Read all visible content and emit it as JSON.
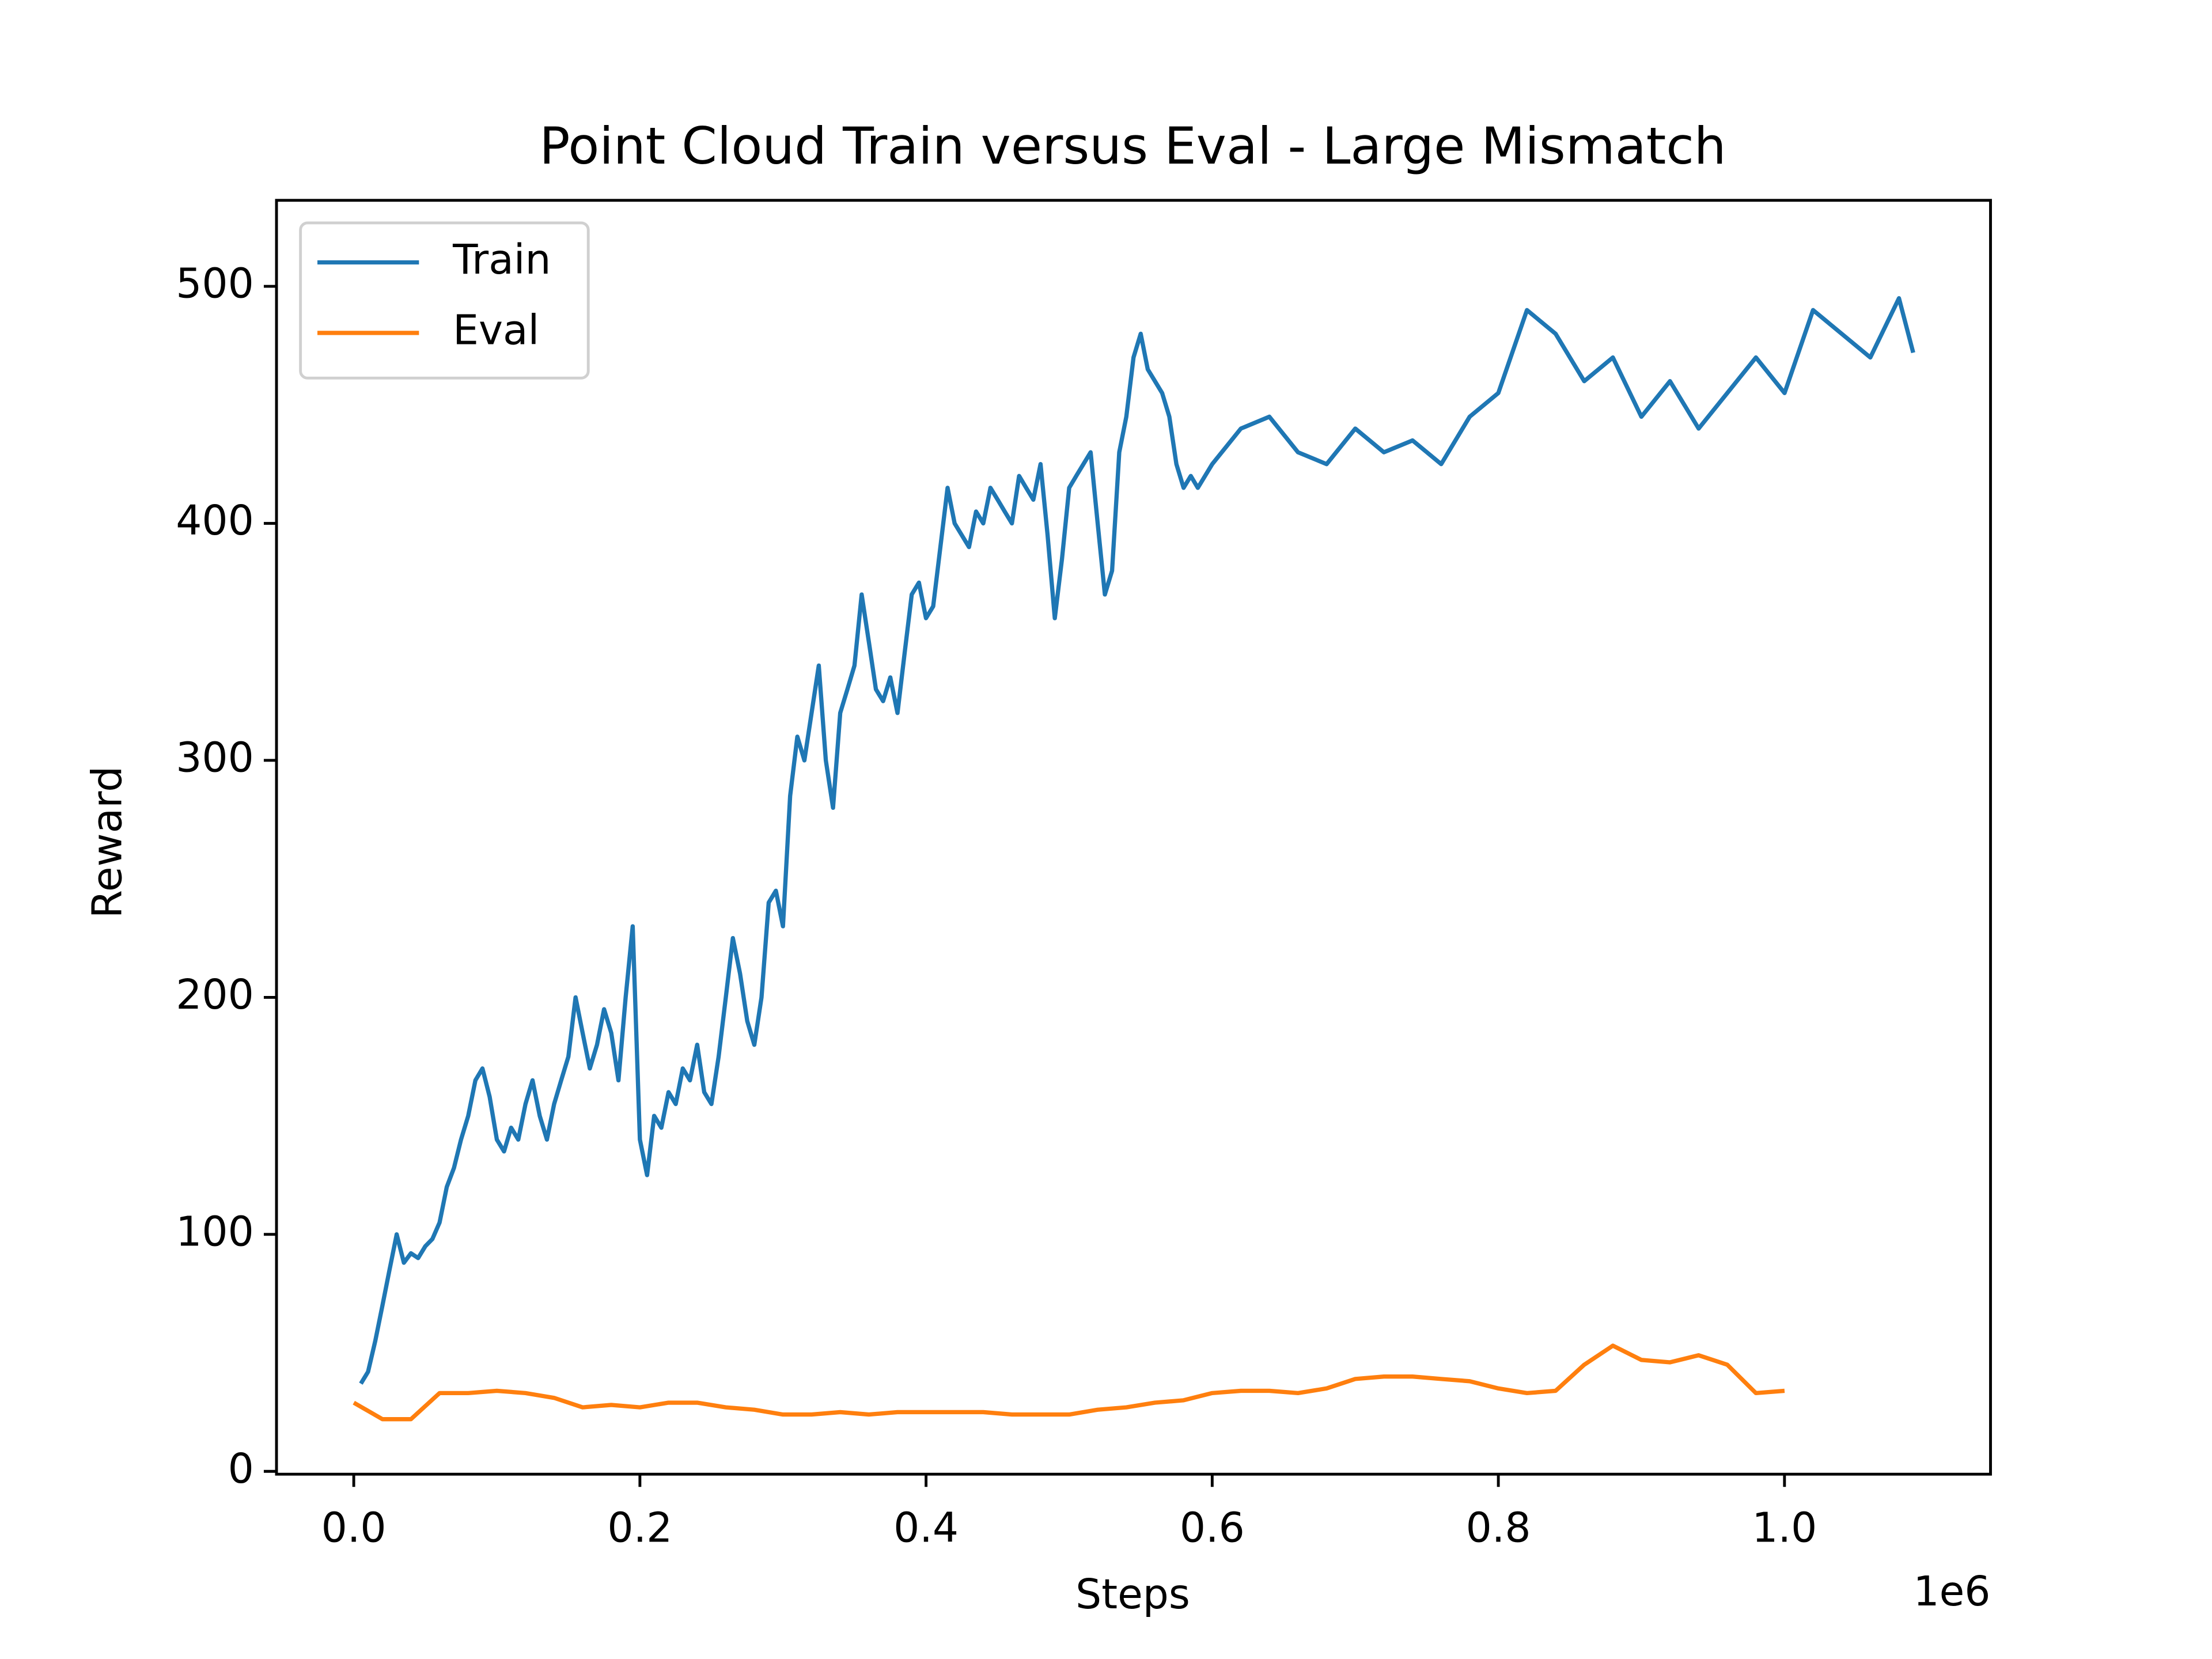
{
  "chart_data": {
    "type": "line",
    "title": "Point Cloud Train versus Eval - Large Mismatch",
    "xlabel": "Steps",
    "ylabel": "Reward",
    "x_offset_label": "1e6",
    "xlim": [
      -54000,
      1144000
    ],
    "ylim": [
      -1.2,
      536.3
    ],
    "xticks": [
      {
        "value": 0,
        "label": "0.0"
      },
      {
        "value": 200000,
        "label": "0.2"
      },
      {
        "value": 400000,
        "label": "0.4"
      },
      {
        "value": 600000,
        "label": "0.6"
      },
      {
        "value": 800000,
        "label": "0.8"
      },
      {
        "value": 1000000,
        "label": "1.0"
      }
    ],
    "yticks": [
      0,
      100,
      200,
      300,
      400,
      500
    ],
    "legend": "upper left",
    "series": [
      {
        "name": "Train",
        "color": "#1f77b4",
        "x": [
          5000,
          10000,
          15000,
          20000,
          25000,
          30000,
          35000,
          40000,
          45000,
          50000,
          55000,
          60000,
          65000,
          70000,
          75000,
          80000,
          85000,
          90000,
          95000,
          100000,
          105000,
          110000,
          115000,
          120000,
          125000,
          130000,
          135000,
          140000,
          145000,
          150000,
          155000,
          160000,
          165000,
          170000,
          175000,
          180000,
          185000,
          190000,
          195000,
          200000,
          205000,
          210000,
          215000,
          220000,
          225000,
          230000,
          235000,
          240000,
          245000,
          250000,
          255000,
          260000,
          265000,
          270000,
          275000,
          280000,
          285000,
          290000,
          295000,
          300000,
          305000,
          310000,
          315000,
          320000,
          325000,
          330000,
          335000,
          340000,
          345000,
          350000,
          355000,
          360000,
          365000,
          370000,
          375000,
          380000,
          385000,
          390000,
          395000,
          400000,
          405000,
          410000,
          415000,
          420000,
          425000,
          430000,
          435000,
          440000,
          445000,
          450000,
          455000,
          460000,
          465000,
          470000,
          475000,
          480000,
          485000,
          490000,
          495000,
          500000,
          505000,
          510000,
          515000,
          520000,
          525000,
          530000,
          535000,
          540000,
          545000,
          550000,
          555000,
          560000,
          565000,
          570000,
          575000,
          580000,
          585000,
          590000,
          600000,
          620000,
          640000,
          660000,
          680000,
          700000,
          720000,
          740000,
          760000,
          780000,
          800000,
          820000,
          840000,
          860000,
          880000,
          900000,
          920000,
          940000,
          960000,
          980000,
          1000000,
          1020000,
          1040000,
          1060000,
          1080000,
          1090000
        ],
        "values": [
          37,
          42,
          55,
          70,
          85,
          100,
          88,
          92,
          90,
          95,
          98,
          105,
          120,
          128,
          140,
          150,
          165,
          170,
          158,
          140,
          135,
          145,
          140,
          155,
          165,
          150,
          140,
          155,
          165,
          175,
          200,
          185,
          170,
          180,
          195,
          185,
          165,
          200,
          230,
          140,
          125,
          150,
          145,
          160,
          155,
          170,
          165,
          180,
          160,
          155,
          175,
          200,
          225,
          210,
          190,
          180,
          200,
          240,
          245,
          230,
          285,
          310,
          300,
          320,
          340,
          300,
          280,
          320,
          330,
          340,
          370,
          350,
          330,
          325,
          335,
          320,
          345,
          370,
          375,
          360,
          365,
          390,
          415,
          400,
          395,
          390,
          405,
          400,
          415,
          410,
          405,
          400,
          420,
          415,
          410,
          425,
          395,
          360,
          385,
          415,
          420,
          425,
          430,
          400,
          370,
          380,
          430,
          445,
          470,
          480,
          465,
          460,
          455,
          445,
          425,
          415,
          420,
          415,
          425,
          440,
          445,
          430,
          425,
          440,
          430,
          435,
          425,
          445,
          455,
          490,
          480,
          460,
          470,
          445,
          460,
          440,
          455,
          470,
          455,
          490,
          480,
          470,
          495,
          472
        ]
      },
      {
        "name": "Eval",
        "color": "#ff7f0e",
        "x": [
          0,
          20000,
          40000,
          60000,
          80000,
          100000,
          120000,
          140000,
          160000,
          180000,
          200000,
          220000,
          240000,
          260000,
          280000,
          300000,
          320000,
          340000,
          360000,
          380000,
          400000,
          420000,
          440000,
          460000,
          480000,
          500000,
          520000,
          540000,
          560000,
          580000,
          600000,
          620000,
          640000,
          660000,
          680000,
          700000,
          720000,
          740000,
          760000,
          780000,
          800000,
          820000,
          840000,
          860000,
          880000,
          900000,
          920000,
          940000,
          960000,
          980000,
          1000000
        ],
        "values": [
          29,
          22,
          22,
          33,
          33,
          34,
          33,
          31,
          27,
          28,
          27,
          29,
          29,
          27,
          26,
          24,
          24,
          25,
          24,
          25,
          25,
          25,
          25,
          24,
          24,
          24,
          26,
          27,
          29,
          30,
          33,
          34,
          34,
          33,
          35,
          39,
          40,
          40,
          39,
          38,
          35,
          33,
          34,
          45,
          53,
          47,
          46,
          49,
          45,
          33,
          34
        ]
      }
    ]
  }
}
